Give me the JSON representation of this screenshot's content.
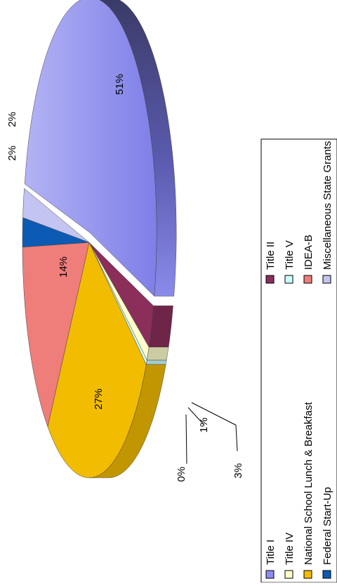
{
  "chart_data": {
    "type": "pie",
    "style": "3d-exploded",
    "orientation": "rotated-90-clockwise",
    "slices": [
      {
        "name": "Title I",
        "value": 51,
        "label": "51%",
        "color": "#8C8CEE"
      },
      {
        "name": "Title II",
        "value": 3,
        "label": "3%",
        "color": "#8B2E5A"
      },
      {
        "name": "Title IV",
        "value": 1,
        "label": "1%",
        "color": "#FFFFCC"
      },
      {
        "name": "Title V",
        "value": 0,
        "label": "0%",
        "color": "#CCFFFF"
      },
      {
        "name": "National School Lunch & Breakfast",
        "value": 27,
        "label": "27%",
        "color": "#F2BC00"
      },
      {
        "name": "IDEA-B",
        "value": 14,
        "label": "14%",
        "color": "#EF7D7A"
      },
      {
        "name": "Federal Start-Up",
        "value": 2,
        "label": "2%",
        "color": "#0B5BB5"
      },
      {
        "name": "Miscellaneous State Grants",
        "value": 2,
        "label": "2%",
        "color": "#C4C4F2"
      }
    ],
    "legend": {
      "position": "bottom",
      "columns": [
        [
          "Title I",
          "Title IV",
          "National School Lunch & Breakfast",
          "Federal Start-Up"
        ],
        [
          "Title II",
          "Title V",
          "IDEA-B",
          "Miscellaneous State Grants"
        ]
      ]
    }
  }
}
